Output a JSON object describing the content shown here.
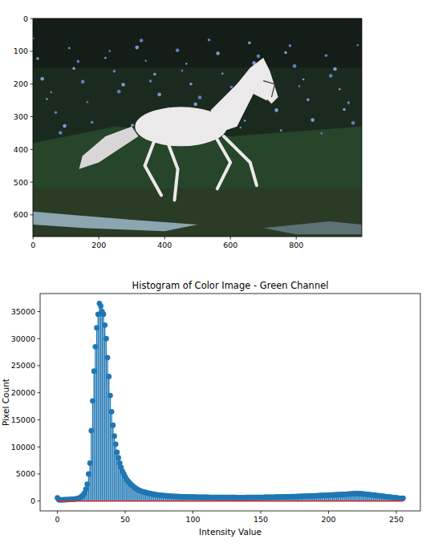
{
  "chart_data": [
    {
      "type": "image",
      "xlim": [
        -0.5,
        999.5
      ],
      "ylim": [
        666.5,
        -0.5
      ],
      "xticks": [
        0,
        200,
        400,
        600,
        800
      ],
      "yticks": [
        0,
        100,
        200,
        300,
        400,
        500,
        600
      ]
    },
    {
      "type": "stem",
      "title": "Histogram of Color Image - Green Channel",
      "x_label": "Intensity Value",
      "y_label": "Pixel Count",
      "color": "#1f77b4",
      "xlim": [
        -12.75,
        267.75
      ],
      "ylim": [
        -1825,
        38325
      ],
      "xticks": [
        0,
        50,
        100,
        150,
        200,
        250
      ],
      "yticks": [
        0,
        5000,
        10000,
        15000,
        20000,
        25000,
        30000,
        35000
      ],
      "x": [
        0,
        1,
        2,
        3,
        4,
        5,
        6,
        7,
        8,
        9,
        10,
        11,
        12,
        13,
        14,
        15,
        16,
        17,
        18,
        19,
        20,
        21,
        22,
        23,
        24,
        25,
        26,
        27,
        28,
        29,
        30,
        31,
        32,
        33,
        34,
        35,
        36,
        37,
        38,
        39,
        40,
        41,
        42,
        43,
        44,
        45,
        46,
        47,
        48,
        49,
        50,
        51,
        52,
        53,
        54,
        55,
        56,
        57,
        58,
        59,
        60,
        61,
        62,
        63,
        64,
        65,
        66,
        67,
        68,
        69,
        70,
        71,
        72,
        73,
        74,
        75,
        76,
        77,
        78,
        79,
        80,
        81,
        82,
        83,
        84,
        85,
        86,
        87,
        88,
        89,
        90,
        91,
        92,
        93,
        94,
        95,
        96,
        97,
        98,
        99,
        100,
        101,
        102,
        103,
        104,
        105,
        106,
        107,
        108,
        109,
        110,
        111,
        112,
        113,
        114,
        115,
        116,
        117,
        118,
        119,
        120,
        121,
        122,
        123,
        124,
        125,
        126,
        127,
        128,
        129,
        130,
        131,
        132,
        133,
        134,
        135,
        136,
        137,
        138,
        139,
        140,
        141,
        142,
        143,
        144,
        145,
        146,
        147,
        148,
        149,
        150,
        151,
        152,
        153,
        154,
        155,
        156,
        157,
        158,
        159,
        160,
        161,
        162,
        163,
        164,
        165,
        166,
        167,
        168,
        169,
        170,
        171,
        172,
        173,
        174,
        175,
        176,
        177,
        178,
        179,
        180,
        181,
        182,
        183,
        184,
        185,
        186,
        187,
        188,
        189,
        190,
        191,
        192,
        193,
        194,
        195,
        196,
        197,
        198,
        199,
        200,
        201,
        202,
        203,
        204,
        205,
        206,
        207,
        208,
        209,
        210,
        211,
        212,
        213,
        214,
        215,
        216,
        217,
        218,
        219,
        220,
        221,
        222,
        223,
        224,
        225,
        226,
        227,
        228,
        229,
        230,
        231,
        232,
        233,
        234,
        235,
        236,
        237,
        238,
        239,
        240,
        241,
        242,
        243,
        244,
        245,
        246,
        247,
        248,
        249,
        250,
        251,
        252,
        253,
        254,
        255
      ],
      "values": [
        600,
        250,
        220,
        230,
        240,
        250,
        260,
        270,
        280,
        300,
        310,
        330,
        350,
        380,
        420,
        480,
        560,
        680,
        850,
        1100,
        1500,
        2200,
        3100,
        5000,
        7000,
        13000,
        18500,
        24000,
        28500,
        32000,
        34500,
        36500,
        36000,
        35000,
        34500,
        32500,
        30000,
        26500,
        23000,
        19500,
        16500,
        14000,
        12000,
        10500,
        9000,
        8000,
        7000,
        6200,
        5500,
        5000,
        4500,
        4000,
        3700,
        3400,
        3100,
        2900,
        2700,
        2500,
        2300,
        2150,
        2000,
        1900,
        1800,
        1720,
        1650,
        1580,
        1520,
        1460,
        1400,
        1350,
        1300,
        1250,
        1210,
        1170,
        1130,
        1100,
        1070,
        1040,
        1010,
        990,
        970,
        950,
        930,
        910,
        890,
        870,
        860,
        850,
        840,
        830,
        820,
        810,
        800,
        790,
        780,
        770,
        760,
        750,
        745,
        740,
        735,
        730,
        725,
        720,
        715,
        710,
        705,
        700,
        698,
        695,
        692,
        690,
        688,
        686,
        684,
        682,
        680,
        678,
        676,
        674,
        672,
        670,
        668,
        666,
        664,
        662,
        660,
        658,
        656,
        655,
        654,
        653,
        652,
        651,
        650,
        650,
        650,
        651,
        652,
        653,
        655,
        657,
        659,
        661,
        663,
        665,
        668,
        671,
        674,
        677,
        680,
        684,
        688,
        692,
        696,
        700,
        705,
        710,
        715,
        720,
        725,
        730,
        736,
        742,
        748,
        754,
        760,
        767,
        774,
        781,
        788,
        795,
        803,
        811,
        819,
        827,
        835,
        844,
        853,
        862,
        871,
        880,
        890,
        900,
        910,
        920,
        930,
        941,
        952,
        963,
        974,
        985,
        996,
        1008,
        1020,
        1032,
        1044,
        1056,
        1068,
        1080,
        1092,
        1104,
        1116,
        1128,
        1140,
        1152,
        1164,
        1176,
        1188,
        1200,
        1215,
        1230,
        1245,
        1260,
        1275,
        1290,
        1305,
        1320,
        1340,
        1360,
        1380,
        1400,
        1380,
        1360,
        1340,
        1320,
        1300,
        1280,
        1250,
        1220,
        1190,
        1160,
        1130,
        1100,
        1070,
        1040,
        1010,
        980,
        950,
        920,
        890,
        860,
        830,
        800,
        770,
        740,
        710,
        680,
        650,
        620,
        590,
        560,
        530,
        500,
        470,
        520
      ]
    }
  ]
}
